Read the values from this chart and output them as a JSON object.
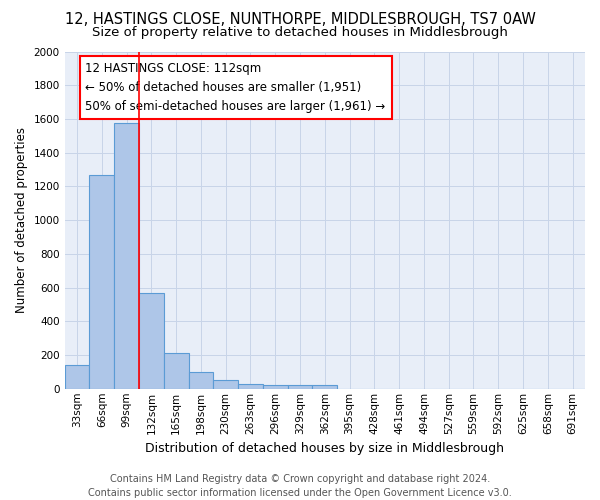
{
  "title": "12, HASTINGS CLOSE, NUNTHORPE, MIDDLESBROUGH, TS7 0AW",
  "subtitle": "Size of property relative to detached houses in Middlesbrough",
  "xlabel": "Distribution of detached houses by size in Middlesbrough",
  "ylabel": "Number of detached properties",
  "footer_line1": "Contains HM Land Registry data © Crown copyright and database right 2024.",
  "footer_line2": "Contains public sector information licensed under the Open Government Licence v3.0.",
  "bin_labels": [
    "33sqm",
    "66sqm",
    "99sqm",
    "132sqm",
    "165sqm",
    "198sqm",
    "230sqm",
    "263sqm",
    "296sqm",
    "329sqm",
    "362sqm",
    "395sqm",
    "428sqm",
    "461sqm",
    "494sqm",
    "527sqm",
    "559sqm",
    "592sqm",
    "625sqm",
    "658sqm",
    "691sqm"
  ],
  "bar_values": [
    140,
    1270,
    1575,
    565,
    215,
    100,
    50,
    30,
    20,
    20,
    20,
    0,
    0,
    0,
    0,
    0,
    0,
    0,
    0,
    0,
    0
  ],
  "bar_color": "#aec6e8",
  "bar_edge_color": "#5b9bd5",
  "red_line_x": 2.5,
  "annotation_line1": "12 HASTINGS CLOSE: 112sqm",
  "annotation_line2": "← 50% of detached houses are smaller (1,951)",
  "annotation_line3": "50% of semi-detached houses are larger (1,961) →",
  "ylim": [
    0,
    2000
  ],
  "yticks": [
    0,
    200,
    400,
    600,
    800,
    1000,
    1200,
    1400,
    1600,
    1800,
    2000
  ],
  "grid_color": "#c8d4e8",
  "bg_color": "#e8eef8",
  "title_fontsize": 10.5,
  "subtitle_fontsize": 9.5,
  "xlabel_fontsize": 9,
  "ylabel_fontsize": 8.5,
  "tick_fontsize": 7.5,
  "footer_fontsize": 7,
  "annotation_fontsize": 8.5
}
